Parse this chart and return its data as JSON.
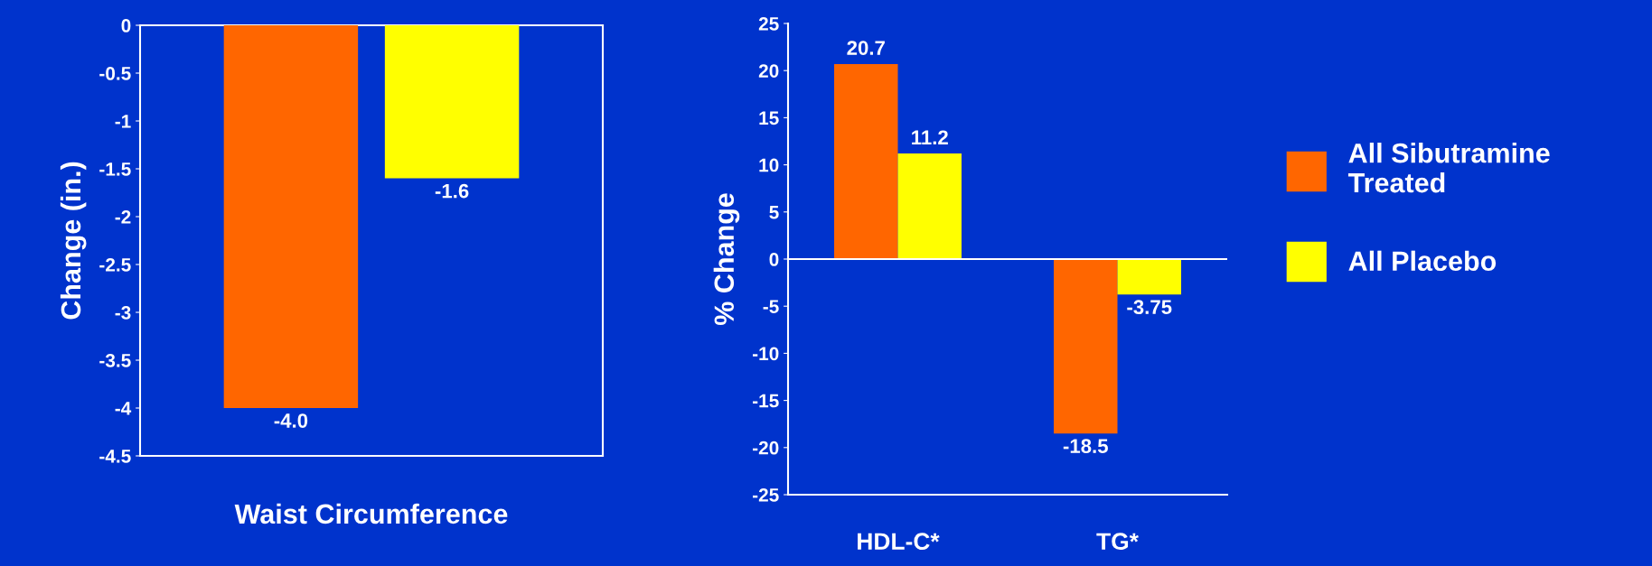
{
  "chart_data": [
    {
      "type": "bar",
      "ylabel": "Change (in.)",
      "categories": [
        "Waist Circumference"
      ],
      "series": [
        {
          "color": "#ff6600",
          "values": [
            -4.0
          ],
          "value_labels": [
            "-4.0"
          ]
        },
        {
          "color": "#ffff00",
          "values": [
            -1.6
          ],
          "value_labels": [
            "-1.6"
          ]
        }
      ],
      "ylim": [
        -4.5,
        0
      ],
      "yticks": [
        -4.5,
        -4,
        -3.5,
        -3,
        -2.5,
        -2,
        -1.5,
        -1,
        -0.5,
        0
      ],
      "grid": false,
      "legend": false
    },
    {
      "type": "bar",
      "ylabel": "% Change",
      "categories": [
        "HDL-C*",
        "TG*"
      ],
      "series": [
        {
          "name": "All Sibutramine Treated",
          "color": "#ff6600",
          "values": [
            20.7,
            -18.5
          ]
        },
        {
          "name": "All Placebo",
          "color": "#ffff00",
          "values": [
            11.2,
            -3.75
          ]
        }
      ],
      "ylim": [
        -25,
        25
      ],
      "yticks": [
        -25,
        -20,
        -15,
        -10,
        -5,
        0,
        5,
        10,
        15,
        20,
        25
      ],
      "ref_lines": [
        {
          "axis": "y",
          "value": 0,
          "color": "#ffffff"
        }
      ],
      "data_labels": true,
      "grid": false,
      "legend": "right"
    }
  ]
}
